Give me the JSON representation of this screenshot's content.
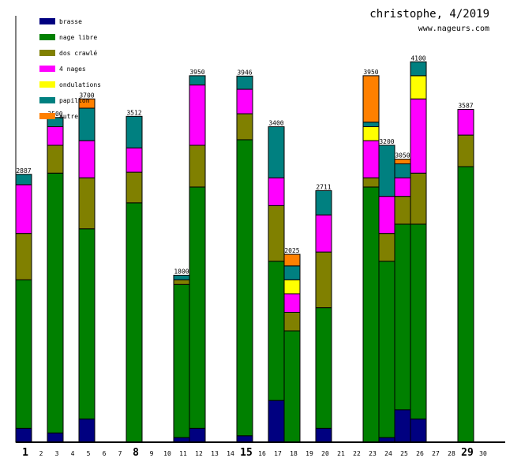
{
  "header": {
    "title": "christophe, 4/2019",
    "site": "www.nageurs.com"
  },
  "chart_data": {
    "type": "bar",
    "stacked": true,
    "title": "christophe, 4/2019",
    "xlabel": "",
    "ylabel": "",
    "ylim": [
      0,
      4600
    ],
    "grid": false,
    "legend_position": "top-left",
    "x": [
      1,
      2,
      3,
      4,
      5,
      6,
      7,
      8,
      9,
      10,
      11,
      12,
      13,
      14,
      15,
      16,
      17,
      18,
      19,
      20,
      21,
      22,
      23,
      24,
      25,
      26,
      27,
      28,
      29,
      30
    ],
    "bold_days": [
      1,
      8,
      15,
      29
    ],
    "series": [
      {
        "name": "brasse",
        "color": "#000080",
        "values": [
          150,
          0,
          100,
          0,
          250,
          0,
          0,
          0,
          0,
          0,
          50,
          150,
          0,
          0,
          70,
          0,
          450,
          0,
          0,
          150,
          0,
          0,
          0,
          50,
          350,
          250,
          0,
          0,
          0,
          0
        ]
      },
      {
        "name": "nage libre",
        "color": "#008000",
        "values": [
          1600,
          0,
          2800,
          0,
          2050,
          0,
          0,
          2580,
          0,
          0,
          1650,
          2600,
          0,
          0,
          3190,
          0,
          1500,
          1200,
          0,
          1300,
          0,
          0,
          2750,
          1900,
          2000,
          2100,
          0,
          0,
          2970,
          0
        ]
      },
      {
        "name": "dos crawlé",
        "color": "#808000",
        "values": [
          500,
          0,
          300,
          0,
          550,
          0,
          0,
          330,
          0,
          0,
          50,
          450,
          0,
          0,
          280,
          0,
          600,
          200,
          0,
          600,
          0,
          0,
          100,
          300,
          300,
          550,
          0,
          0,
          340,
          0
        ]
      },
      {
        "name": "4 nages",
        "color": "#ff00ff",
        "values": [
          525,
          0,
          200,
          0,
          400,
          0,
          0,
          262,
          0,
          0,
          0,
          650,
          0,
          0,
          264,
          0,
          300,
          200,
          0,
          400,
          0,
          0,
          400,
          400,
          200,
          800,
          0,
          0,
          277,
          0
        ]
      },
      {
        "name": "ondulations",
        "color": "#ffff00",
        "values": [
          0,
          0,
          0,
          0,
          0,
          0,
          0,
          0,
          0,
          0,
          0,
          0,
          0,
          0,
          0,
          0,
          0,
          150,
          0,
          0,
          0,
          0,
          150,
          0,
          0,
          250,
          0,
          0,
          0,
          0
        ]
      },
      {
        "name": "papillon",
        "color": "#008080",
        "values": [
          112,
          0,
          100,
          0,
          350,
          0,
          0,
          340,
          0,
          0,
          50,
          100,
          0,
          0,
          142,
          0,
          550,
          150,
          0,
          261,
          0,
          0,
          50,
          550,
          150,
          150,
          0,
          0,
          0,
          0
        ]
      },
      {
        "name": "autre",
        "color": "#ff8000",
        "values": [
          0,
          0,
          0,
          0,
          100,
          0,
          0,
          0,
          0,
          0,
          0,
          0,
          0,
          0,
          0,
          0,
          0,
          125,
          0,
          0,
          0,
          0,
          500,
          0,
          50,
          0,
          0,
          0,
          0,
          0
        ]
      }
    ],
    "totals": [
      2887,
      0,
      3500,
      0,
      3700,
      0,
      0,
      3512,
      0,
      0,
      1800,
      3950,
      0,
      0,
      3946,
      0,
      3400,
      2025,
      0,
      2711,
      0,
      0,
      3950,
      3200,
      3050,
      4100,
      0,
      0,
      3587,
      0
    ]
  }
}
